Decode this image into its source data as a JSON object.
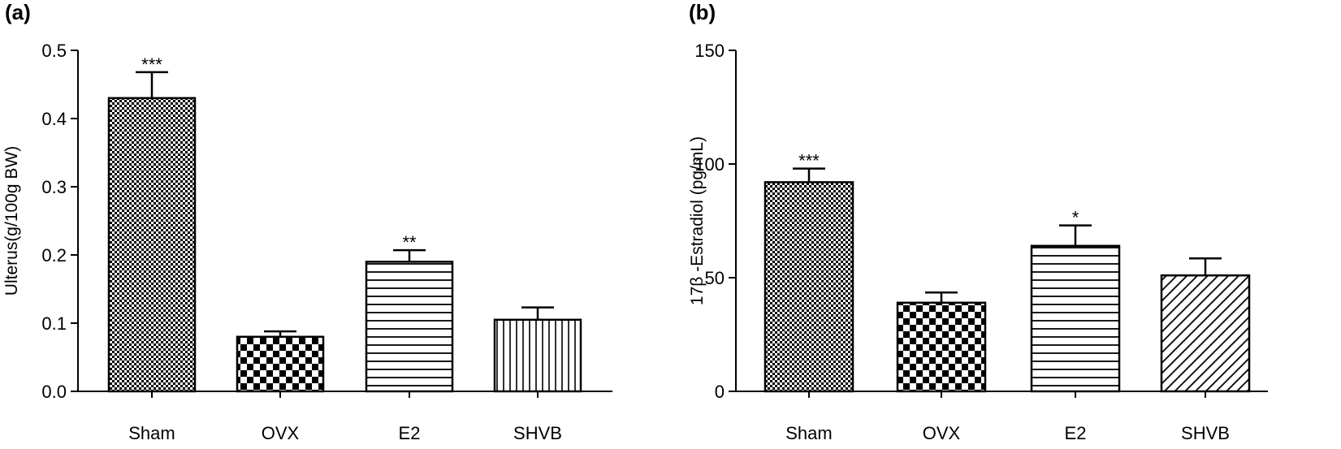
{
  "chart_data": [
    {
      "type": "bar",
      "panel_label": "(a)",
      "title": "",
      "xlabel": "",
      "ylabel": "Ulterus(g/100g BW)",
      "ylim": [
        0,
        0.5
      ],
      "yticks": [
        "0.0",
        "0.1",
        "0.2",
        "0.3",
        "0.4",
        "0.5"
      ],
      "categories": [
        "Sham",
        "OVX",
        "E2",
        "SHVB"
      ],
      "values": [
        0.43,
        0.08,
        0.19,
        0.105
      ],
      "errors": [
        0.038,
        0.008,
        0.017,
        0.018
      ],
      "significance": [
        "***",
        "",
        "**",
        ""
      ],
      "patterns": [
        "fine-checker",
        "coarse-checker",
        "horizontal-lines",
        "vertical-lines"
      ]
    },
    {
      "type": "bar",
      "panel_label": "(b)",
      "title": "",
      "xlabel": "",
      "ylabel": "17β -Estradiol (pg/mL)",
      "ylim": [
        0,
        150
      ],
      "yticks": [
        "0",
        "50",
        "100",
        "150"
      ],
      "categories": [
        "Sham",
        "OVX",
        "E2",
        "SHVB"
      ],
      "values": [
        92,
        39,
        64,
        51
      ],
      "errors": [
        6,
        4.5,
        9,
        7.5
      ],
      "significance": [
        "***",
        "",
        "*",
        ""
      ],
      "patterns": [
        "fine-checker",
        "coarse-checker",
        "horizontal-lines",
        "diagonal-lines"
      ]
    }
  ]
}
